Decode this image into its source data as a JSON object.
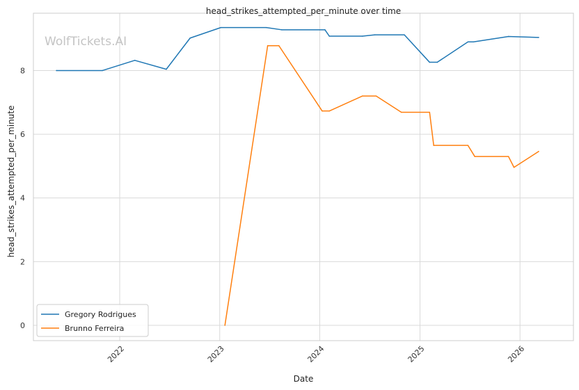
{
  "chart_data": {
    "type": "line",
    "title": "head_strikes_attempted_per_minute over time",
    "xlabel": "Date",
    "ylabel": "head_strikes_attempted_per_minute",
    "watermark": "WolfTickets.AI",
    "x_ticks": [
      "2022",
      "2023",
      "2024",
      "2025",
      "2026"
    ],
    "y_ticks": [
      "0",
      "2",
      "4",
      "6",
      "8"
    ],
    "xlim": [
      "2021-02-20",
      "2026-07-15"
    ],
    "ylim": [
      -0.48,
      9.8
    ],
    "grid": true,
    "legend_position": "lower-left",
    "series": [
      {
        "name": "Gregory Rodrigues",
        "color": "#1f77b4",
        "points": [
          [
            "2021-05-15",
            8.0
          ],
          [
            "2021-10-30",
            8.0
          ],
          [
            "2022-02-25",
            8.32
          ],
          [
            "2022-06-20",
            8.04
          ],
          [
            "2022-09-15",
            9.02
          ],
          [
            "2023-01-05",
            9.35
          ],
          [
            "2023-06-20",
            9.35
          ],
          [
            "2023-08-15",
            9.28
          ],
          [
            "2024-01-20",
            9.28
          ],
          [
            "2024-02-05",
            9.08
          ],
          [
            "2024-06-05",
            9.08
          ],
          [
            "2024-07-20",
            9.12
          ],
          [
            "2024-11-05",
            9.12
          ],
          [
            "2025-02-05",
            8.26
          ],
          [
            "2025-03-05",
            8.26
          ],
          [
            "2025-06-25",
            8.9
          ],
          [
            "2025-07-15",
            8.9
          ],
          [
            "2025-11-20",
            9.07
          ],
          [
            "2026-03-10",
            9.04
          ]
        ]
      },
      {
        "name": "Brunno Ferreira",
        "color": "#ff7f0e",
        "points": [
          [
            "2023-01-20",
            0.0
          ],
          [
            "2023-06-25",
            8.78
          ],
          [
            "2023-08-05",
            8.78
          ],
          [
            "2024-01-10",
            6.73
          ],
          [
            "2024-02-05",
            6.73
          ],
          [
            "2024-06-05",
            7.2
          ],
          [
            "2024-07-25",
            7.2
          ],
          [
            "2024-10-25",
            6.69
          ],
          [
            "2025-02-05",
            6.69
          ],
          [
            "2025-02-20",
            5.65
          ],
          [
            "2025-06-25",
            5.65
          ],
          [
            "2025-07-20",
            5.3
          ],
          [
            "2025-11-20",
            5.3
          ],
          [
            "2025-12-10",
            4.96
          ],
          [
            "2026-03-10",
            5.46
          ]
        ]
      }
    ]
  }
}
